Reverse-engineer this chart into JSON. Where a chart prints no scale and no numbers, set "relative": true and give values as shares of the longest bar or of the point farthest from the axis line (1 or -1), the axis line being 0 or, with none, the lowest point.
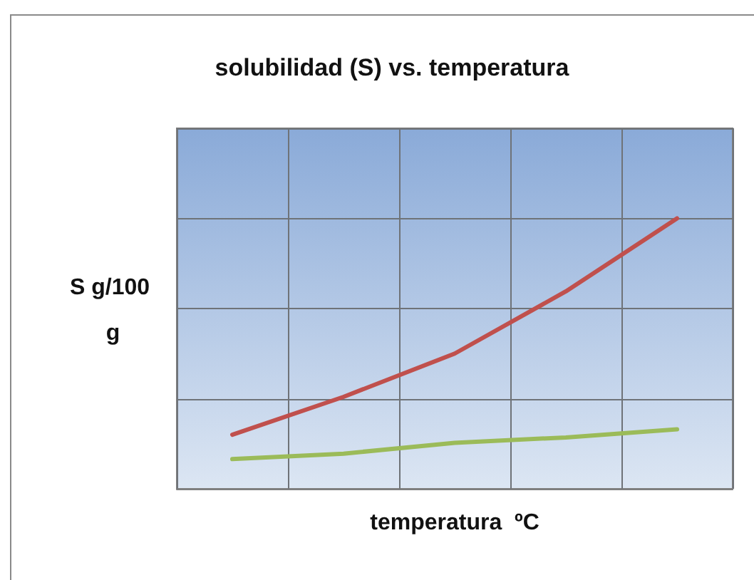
{
  "chart_data": {
    "type": "line",
    "title": "solubilidad (S) vs. temperatura",
    "xlabel": "temperatura  ºC",
    "ylabel": "S g/100 g",
    "categories": [
      null,
      null,
      null,
      null,
      null
    ],
    "relative": true,
    "series": [
      {
        "color": "#c0504d",
        "values": [
          0.2,
          0.34,
          0.5,
          0.73,
          1
        ]
      },
      {
        "color": "#9bbb59",
        "values": [
          0.11,
          0.13,
          0.17,
          0.19,
          0.22
        ]
      }
    ],
    "grid": true,
    "marker": "none",
    "line_style": "solid"
  }
}
